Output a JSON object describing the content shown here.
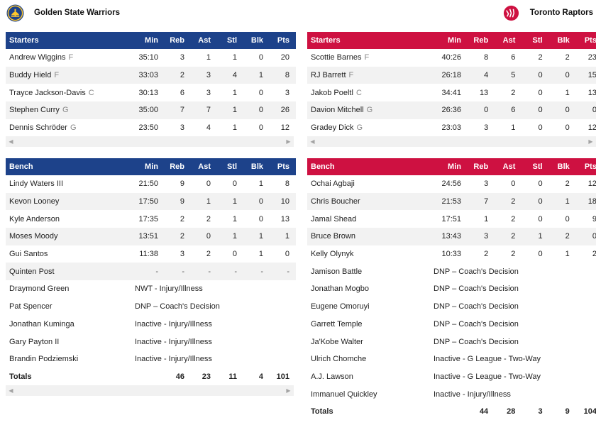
{
  "teams": {
    "home": {
      "name": "Golden State Warriors",
      "logo_icon": "warriors-logo-icon",
      "color": "#1d428a"
    },
    "away": {
      "name": "Toronto Raptors",
      "logo_icon": "raptors-logo-icon",
      "color": "#ce1141"
    }
  },
  "columns": [
    "Min",
    "Reb",
    "Ast",
    "Stl",
    "Blk",
    "Pts"
  ],
  "gsw": {
    "starters_label": "Starters",
    "bench_label": "Bench",
    "starters": [
      {
        "name": "Andrew Wiggins",
        "pos": "F",
        "stats": [
          "35:10",
          "3",
          "1",
          "1",
          "0",
          "20"
        ]
      },
      {
        "name": "Buddy Hield",
        "pos": "F",
        "stats": [
          "33:03",
          "2",
          "3",
          "4",
          "1",
          "8"
        ]
      },
      {
        "name": "Trayce Jackson-Davis",
        "pos": "C",
        "stats": [
          "30:13",
          "6",
          "3",
          "1",
          "0",
          "3"
        ]
      },
      {
        "name": "Stephen Curry",
        "pos": "G",
        "stats": [
          "35:00",
          "7",
          "7",
          "1",
          "0",
          "26"
        ]
      },
      {
        "name": "Dennis Schröder",
        "pos": "G",
        "stats": [
          "23:50",
          "3",
          "4",
          "1",
          "0",
          "12"
        ]
      }
    ],
    "bench": [
      {
        "name": "Lindy Waters III",
        "stats": [
          "21:50",
          "9",
          "0",
          "0",
          "1",
          "8"
        ]
      },
      {
        "name": "Kevon Looney",
        "stats": [
          "17:50",
          "9",
          "1",
          "1",
          "0",
          "10"
        ]
      },
      {
        "name": "Kyle Anderson",
        "stats": [
          "17:35",
          "2",
          "2",
          "1",
          "0",
          "13"
        ]
      },
      {
        "name": "Moses Moody",
        "stats": [
          "13:51",
          "2",
          "0",
          "1",
          "1",
          "1"
        ]
      },
      {
        "name": "Gui Santos",
        "stats": [
          "11:38",
          "3",
          "2",
          "0",
          "1",
          "0"
        ]
      },
      {
        "name": "Quinten Post",
        "stats": [
          "-",
          "-",
          "-",
          "-",
          "-",
          "-"
        ]
      }
    ],
    "inactive": [
      {
        "name": "Draymond Green",
        "status": "NWT - Injury/Illness"
      },
      {
        "name": "Pat Spencer",
        "status": "DNP – Coach's Decision"
      },
      {
        "name": "Jonathan Kuminga",
        "status": "Inactive - Injury/Illness"
      },
      {
        "name": "Gary Payton II",
        "status": "Inactive - Injury/Illness"
      },
      {
        "name": "Brandin Podziemski",
        "status": "Inactive - Injury/Illness"
      }
    ],
    "totals": {
      "label": "Totals",
      "stats": [
        "46",
        "23",
        "11",
        "4",
        "101"
      ]
    }
  },
  "tor": {
    "starters_label": "Starters",
    "bench_label": "Bench",
    "starters": [
      {
        "name": "Scottie Barnes",
        "pos": "F",
        "stats": [
          "40:26",
          "8",
          "6",
          "2",
          "2",
          "23"
        ]
      },
      {
        "name": "RJ Barrett",
        "pos": "F",
        "stats": [
          "26:18",
          "4",
          "5",
          "0",
          "0",
          "15"
        ]
      },
      {
        "name": "Jakob Poeltl",
        "pos": "C",
        "stats": [
          "34:41",
          "13",
          "2",
          "0",
          "1",
          "13"
        ]
      },
      {
        "name": "Davion Mitchell",
        "pos": "G",
        "stats": [
          "26:36",
          "0",
          "6",
          "0",
          "0",
          "0"
        ]
      },
      {
        "name": "Gradey Dick",
        "pos": "G",
        "stats": [
          "23:03",
          "3",
          "1",
          "0",
          "0",
          "12"
        ]
      }
    ],
    "bench": [
      {
        "name": "Ochai Agbaji",
        "stats": [
          "24:56",
          "3",
          "0",
          "0",
          "2",
          "12"
        ]
      },
      {
        "name": "Chris Boucher",
        "stats": [
          "21:53",
          "7",
          "2",
          "0",
          "1",
          "18"
        ]
      },
      {
        "name": "Jamal Shead",
        "stats": [
          "17:51",
          "1",
          "2",
          "0",
          "0",
          "9"
        ]
      },
      {
        "name": "Bruce Brown",
        "stats": [
          "13:43",
          "3",
          "2",
          "1",
          "2",
          "0"
        ]
      },
      {
        "name": "Kelly Olynyk",
        "stats": [
          "10:33",
          "2",
          "2",
          "0",
          "1",
          "2"
        ]
      }
    ],
    "inactive": [
      {
        "name": "Jamison Battle",
        "status": "DNP – Coach's Decision"
      },
      {
        "name": "Jonathan Mogbo",
        "status": "DNP – Coach's Decision"
      },
      {
        "name": "Eugene Omoruyi",
        "status": "DNP – Coach's Decision"
      },
      {
        "name": "Garrett Temple",
        "status": "DNP – Coach's Decision"
      },
      {
        "name": "Ja'Kobe Walter",
        "status": "DNP – Coach's Decision"
      },
      {
        "name": "Ulrich Chomche",
        "status": "Inactive - G League - Two-Way"
      },
      {
        "name": "A.J. Lawson",
        "status": "Inactive - G League - Two-Way"
      },
      {
        "name": "Immanuel Quickley",
        "status": "Inactive - Injury/Illness"
      }
    ],
    "totals": {
      "label": "Totals",
      "stats": [
        "44",
        "28",
        "3",
        "9",
        "104"
      ]
    }
  },
  "scrollbar": {
    "left_icon": "scroll-left-icon",
    "right_icon": "scroll-right-icon"
  }
}
